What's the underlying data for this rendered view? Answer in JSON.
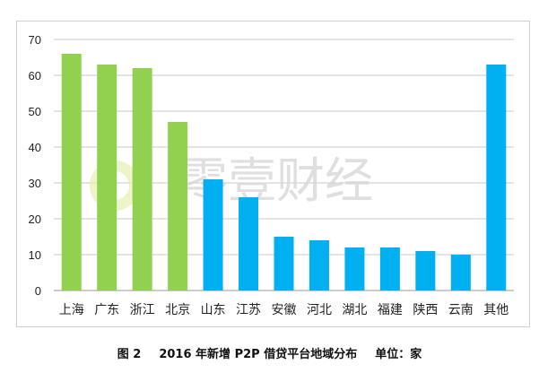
{
  "chart_data": {
    "type": "bar",
    "title": "",
    "xlabel": "",
    "ylabel": "",
    "categories": [
      "上海",
      "广东",
      "浙江",
      "北京",
      "山东",
      "江苏",
      "安徽",
      "河北",
      "湖北",
      "福建",
      "陕西",
      "云南",
      "其他"
    ],
    "values": [
      66,
      63,
      62,
      47,
      31,
      26,
      15,
      14,
      12,
      12,
      11,
      10,
      63
    ],
    "bar_colors": [
      "#92d050",
      "#92d050",
      "#92d050",
      "#92d050",
      "#00b0f0",
      "#00b0f0",
      "#00b0f0",
      "#00b0f0",
      "#00b0f0",
      "#00b0f0",
      "#00b0f0",
      "#00b0f0",
      "#00b0f0"
    ],
    "ylim": [
      0,
      70
    ],
    "yticks": [
      0,
      10,
      20,
      30,
      40,
      50,
      60,
      70
    ],
    "grid": true,
    "legend": "none"
  },
  "caption": {
    "figure": "图 2",
    "text": "2016 年新增 P2P 借贷平台地域分布",
    "unit": "单位：家"
  },
  "watermark": "零壹财经"
}
